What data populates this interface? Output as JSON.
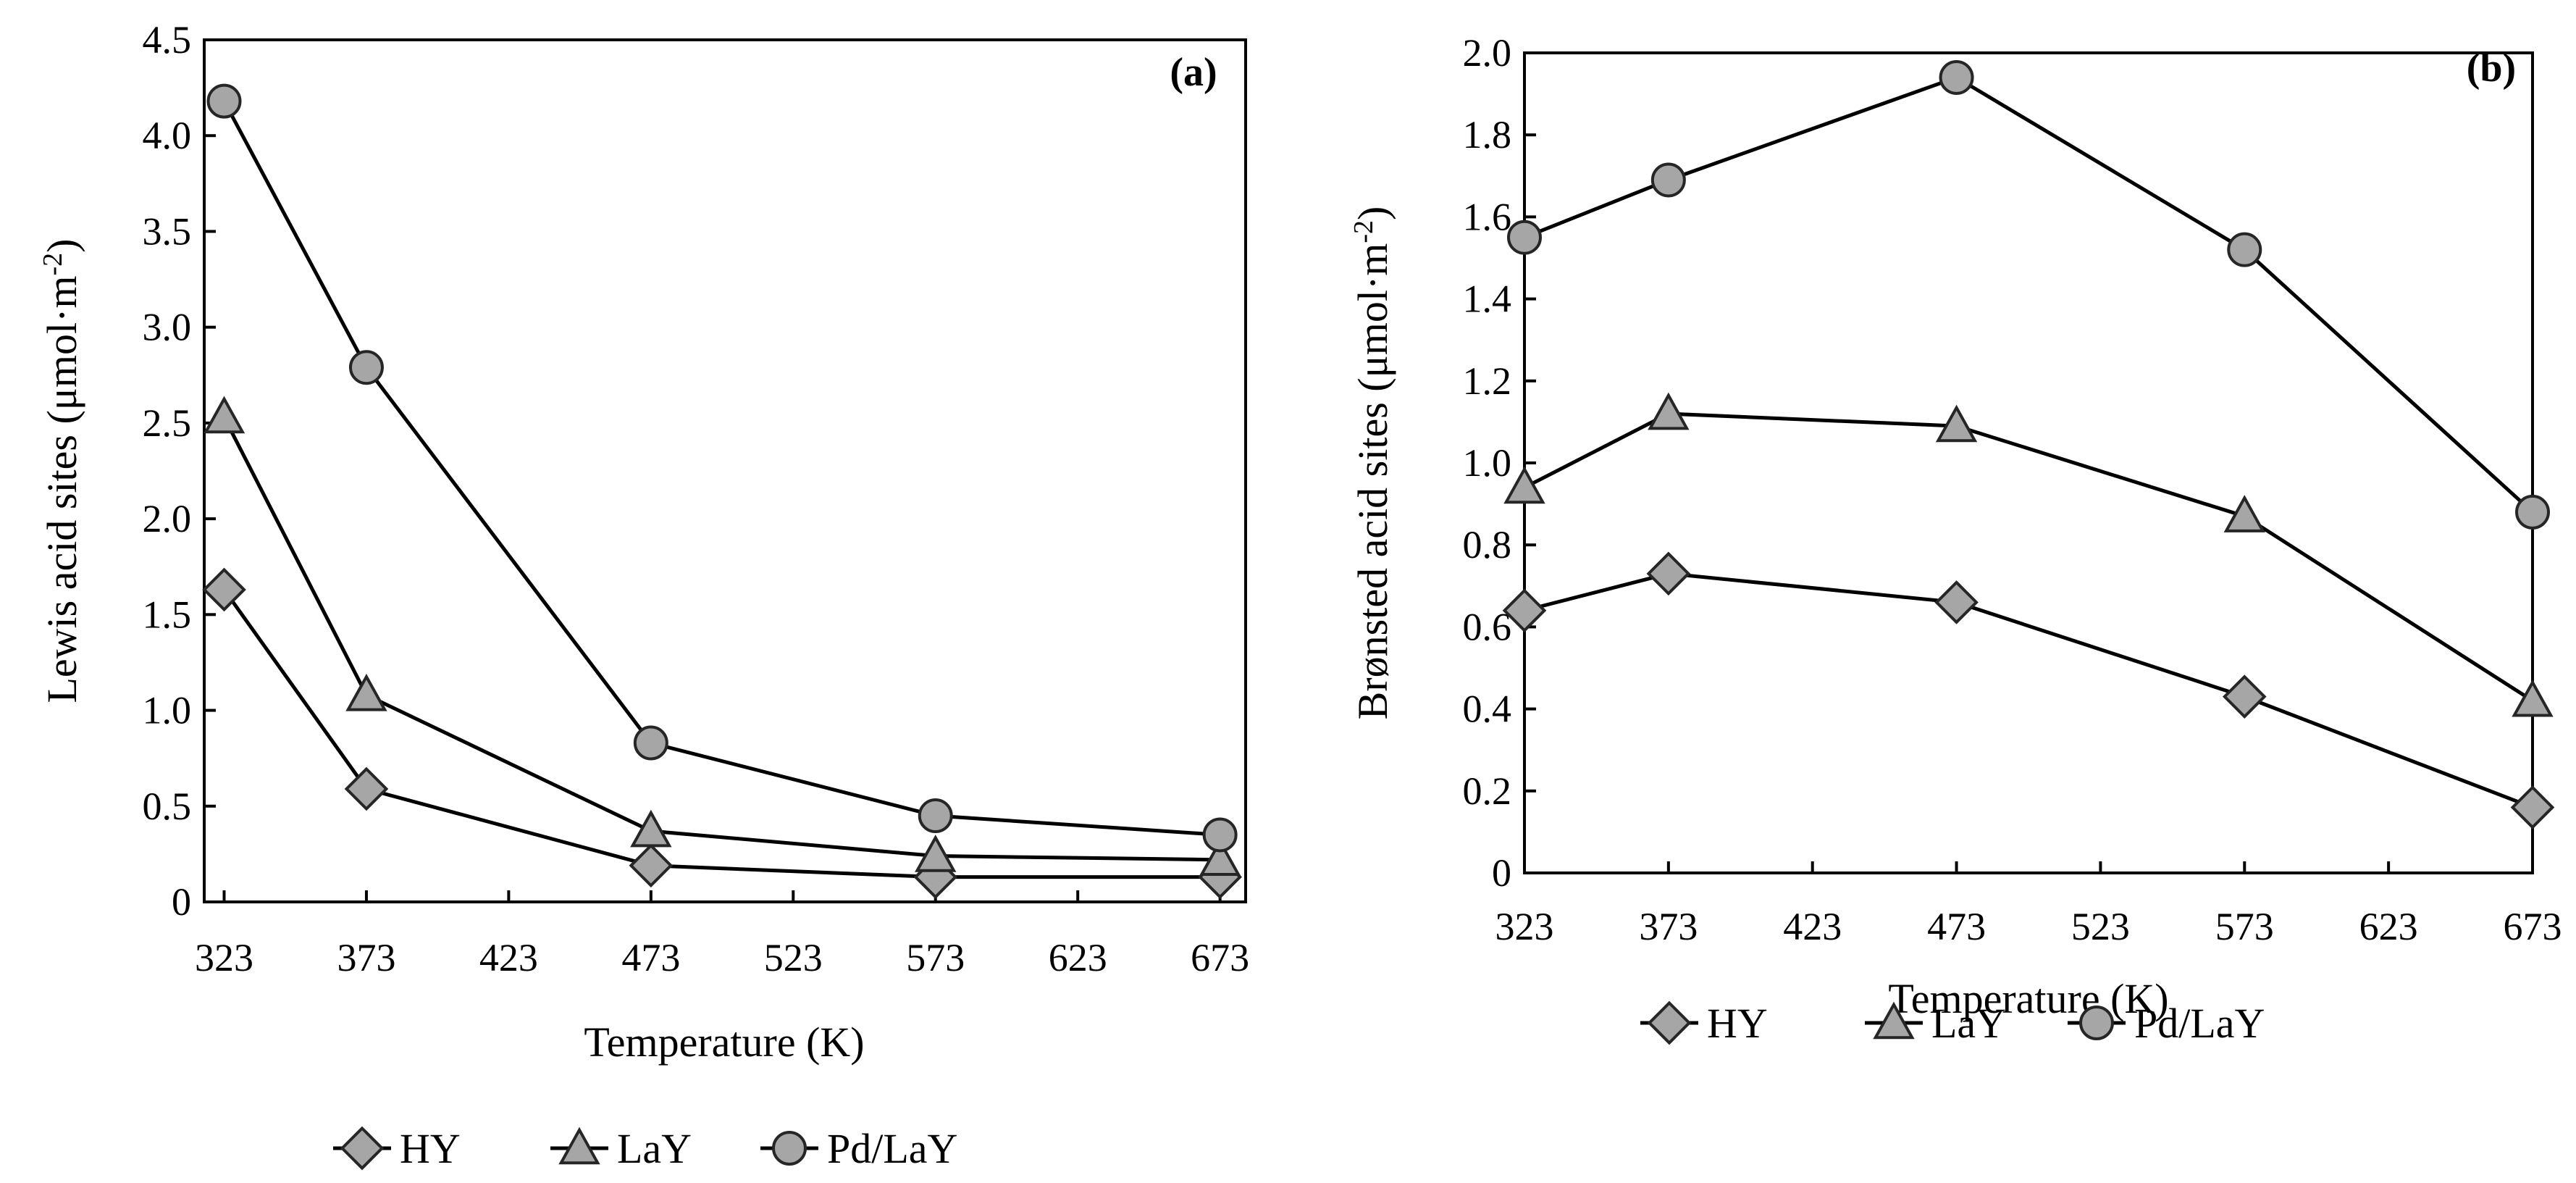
{
  "chart_data": [
    {
      "type": "line",
      "panel_label": "(a)",
      "xlabel": "Temperature (K)",
      "ylabel": "Lewis acid sites (μmol·m",
      "ylabel_sup": "-2",
      "ylabel_close": ")",
      "x": [
        323,
        373,
        473,
        573,
        673
      ],
      "xlim": [
        316,
        682
      ],
      "ylim": [
        0,
        4.5
      ],
      "x_ticks": [
        "323",
        "373",
        "423",
        "473",
        "523",
        "573",
        "623",
        "673"
      ],
      "x_tick_values": [
        323,
        373,
        423,
        473,
        523,
        573,
        623,
        673
      ],
      "y_ticks": [
        "0",
        "0.5",
        "1.0",
        "1.5",
        "2.0",
        "2.5",
        "3.0",
        "3.5",
        "4.0",
        "4.5"
      ],
      "y_tick_values": [
        0,
        0.5,
        1.0,
        1.5,
        2.0,
        2.5,
        3.0,
        3.5,
        4.0,
        4.5
      ],
      "series": [
        {
          "name": "HY",
          "marker": "diamond",
          "values": [
            1.63,
            0.59,
            0.19,
            0.13,
            0.13
          ]
        },
        {
          "name": "LaY",
          "marker": "triangle",
          "values": [
            2.53,
            1.08,
            0.37,
            0.24,
            0.22
          ]
        },
        {
          "name": "Pd/LaY",
          "marker": "circle",
          "values": [
            4.18,
            2.79,
            0.83,
            0.45,
            0.35
          ]
        }
      ],
      "legend": [
        "HY",
        "LaY",
        "Pd/LaY"
      ],
      "legend_position": "bottom"
    },
    {
      "type": "line",
      "panel_label": "(b)",
      "xlabel": "Temperature (K)",
      "ylabel": "Brønsted acid sites (μmol·m",
      "ylabel_sup": "-2",
      "ylabel_close": ")",
      "x": [
        323,
        373,
        473,
        573,
        673
      ],
      "xlim": [
        323,
        673
      ],
      "ylim": [
        0,
        2.0
      ],
      "x_ticks": [
        "323",
        "373",
        "423",
        "473",
        "523",
        "573",
        "623",
        "673"
      ],
      "x_tick_values": [
        323,
        373,
        423,
        473,
        523,
        573,
        623,
        673
      ],
      "y_ticks": [
        "0",
        "0.2",
        "0.4",
        "0.6",
        "0.8",
        "1.0",
        "1.2",
        "1.4",
        "1.6",
        "1.8",
        "2.0"
      ],
      "y_tick_values": [
        0,
        0.2,
        0.4,
        0.6,
        0.8,
        1.0,
        1.2,
        1.4,
        1.6,
        1.8,
        2.0
      ],
      "series": [
        {
          "name": "HY",
          "marker": "diamond",
          "values": [
            0.64,
            0.73,
            0.66,
            0.43,
            0.16
          ]
        },
        {
          "name": "LaY",
          "marker": "triangle",
          "values": [
            0.94,
            1.12,
            1.09,
            0.87,
            0.42
          ]
        },
        {
          "name": "Pd/LaY",
          "marker": "circle",
          "values": [
            1.55,
            1.69,
            1.94,
            1.52,
            0.88
          ]
        }
      ],
      "legend": [
        "HY",
        "LaY",
        "Pd/LaY"
      ],
      "legend_position": "bottom"
    }
  ],
  "colors": {
    "marker_fill": "#a6a6a6",
    "marker_stroke": "#262626",
    "line": "#000000",
    "axis": "#000000"
  }
}
